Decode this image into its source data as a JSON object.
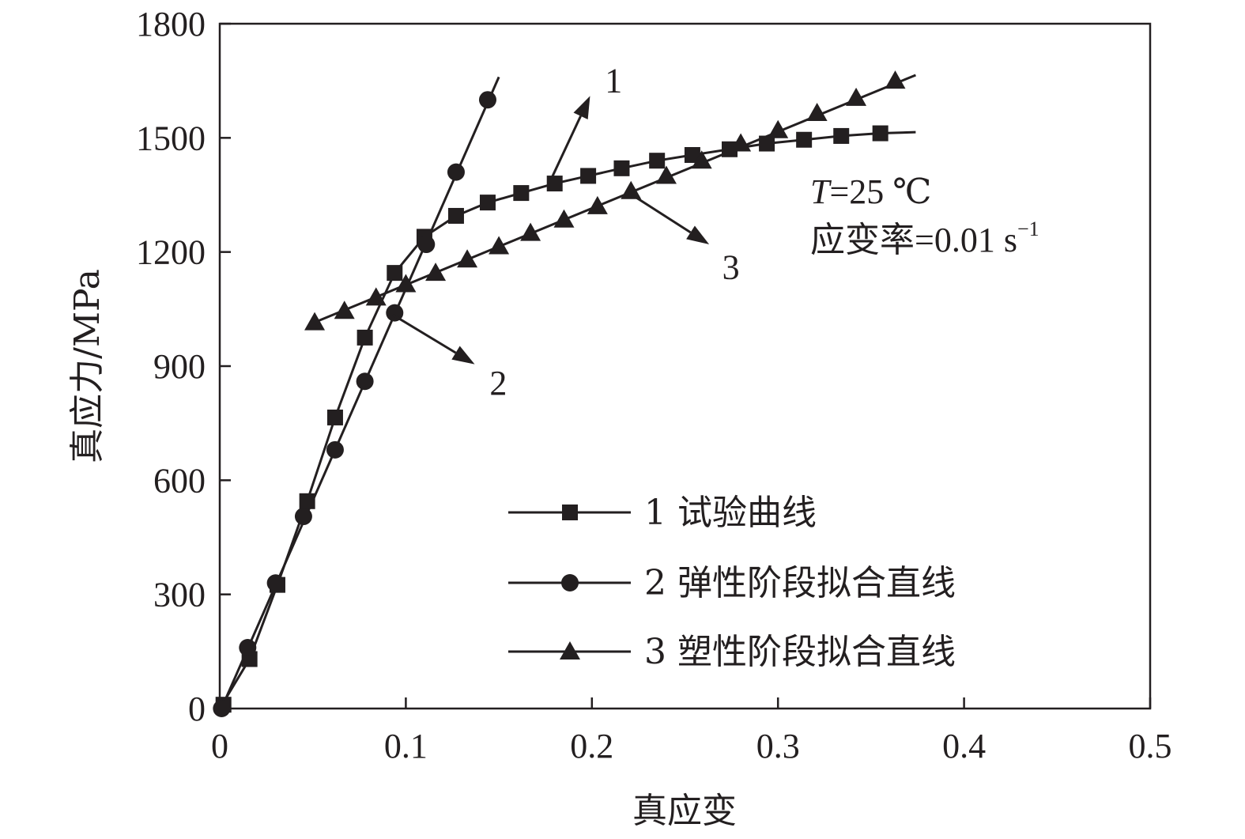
{
  "chart_data": {
    "type": "line",
    "xlabel": "真应变",
    "ylabel": "真应力/MPa",
    "xlim": [
      0,
      0.5
    ],
    "ylim": [
      0,
      1800
    ],
    "xticks": [
      "0",
      "0.1",
      "0.2",
      "0.3",
      "0.4",
      "0.5"
    ],
    "yticks": [
      "0",
      "300",
      "600",
      "900",
      "1200",
      "1500",
      "1800"
    ],
    "xtick_values": [
      0,
      0.1,
      0.2,
      0.3,
      0.4,
      0.5
    ],
    "ytick_values": [
      0,
      300,
      600,
      900,
      1200,
      1500,
      1800
    ],
    "grid": false,
    "legend_position": "bottom-right",
    "series": [
      {
        "name": "1 试验曲线",
        "marker": "square",
        "x": [
          0.002,
          0.016,
          0.031,
          0.047,
          0.062,
          0.078,
          0.094,
          0.11,
          0.127,
          0.144,
          0.162,
          0.18,
          0.198,
          0.216,
          0.235,
          0.254,
          0.274,
          0.294,
          0.314,
          0.334,
          0.355
        ],
        "y": [
          10,
          130,
          325,
          545,
          765,
          975,
          1145,
          1240,
          1295,
          1330,
          1355,
          1380,
          1400,
          1420,
          1440,
          1455,
          1470,
          1485,
          1495,
          1505,
          1512
        ],
        "line_x": [
          0.0,
          0.016,
          0.031,
          0.047,
          0.062,
          0.078,
          0.094,
          0.11,
          0.127,
          0.144,
          0.162,
          0.18,
          0.198,
          0.216,
          0.235,
          0.254,
          0.274,
          0.294,
          0.314,
          0.334,
          0.355,
          0.374
        ],
        "line_y": [
          0,
          130,
          325,
          545,
          765,
          975,
          1145,
          1240,
          1295,
          1330,
          1355,
          1380,
          1400,
          1420,
          1440,
          1455,
          1470,
          1485,
          1495,
          1505,
          1512,
          1515
        ]
      },
      {
        "name": "2 弹性阶段拟合直线",
        "marker": "circle",
        "x": [
          0.001,
          0.015,
          0.03,
          0.045,
          0.062,
          0.078,
          0.094,
          0.111,
          0.127,
          0.144
        ],
        "y": [
          0,
          160,
          330,
          505,
          680,
          860,
          1040,
          1220,
          1410,
          1600
        ],
        "line_x": [
          0.0,
          0.15
        ],
        "line_y": [
          -10,
          1660
        ]
      },
      {
        "name": "3 塑性阶段拟合直线",
        "marker": "triangle",
        "x": [
          0.051,
          0.067,
          0.084,
          0.1,
          0.116,
          0.133,
          0.15,
          0.167,
          0.185,
          0.203,
          0.221,
          0.24,
          0.259,
          0.28,
          0.3,
          0.321,
          0.342,
          0.363
        ],
        "y": [
          1015,
          1045,
          1080,
          1115,
          1145,
          1180,
          1215,
          1250,
          1285,
          1320,
          1360,
          1400,
          1440,
          1485,
          1520,
          1565,
          1605,
          1650
        ],
        "line_x": [
          0.051,
          0.374
        ],
        "line_y": [
          1015,
          1665
        ]
      }
    ],
    "annotations": {
      "condition_temp": "T=25 ℃",
      "condition_rate_base": "应变率=0.01 s",
      "condition_rate_sup": "−1",
      "callouts": [
        {
          "label": "1",
          "from": [
            0.177,
            1380
          ],
          "to": [
            0.199,
            1610
          ],
          "text_at": [
            0.207,
            1620
          ]
        },
        {
          "label": "2",
          "from": [
            0.093,
            1035
          ],
          "to": [
            0.137,
            905
          ],
          "text_at": [
            0.145,
            825
          ]
        },
        {
          "label": "3",
          "from": [
            0.22,
            1355
          ],
          "to": [
            0.263,
            1220
          ],
          "text_at": [
            0.27,
            1130
          ]
        }
      ]
    },
    "colors": {
      "line": "#231f20"
    }
  }
}
